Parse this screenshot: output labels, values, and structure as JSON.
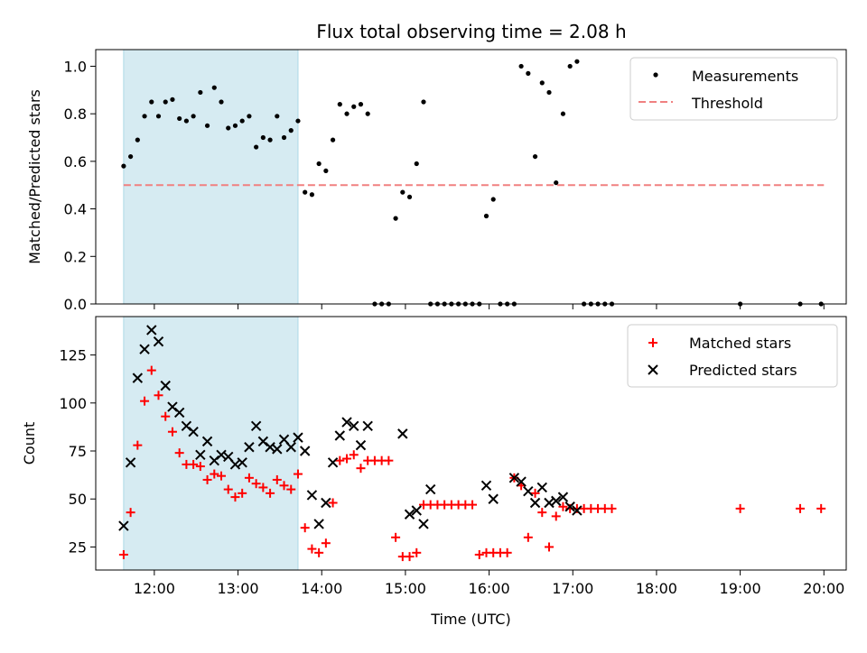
{
  "title": "Flux total observing time = 2.08 h",
  "chart_data": [
    {
      "type": "scatter",
      "ylabel": "Matched/Predicted stars",
      "xlim": [
        "11:18",
        "20:16"
      ],
      "ylim": [
        0,
        1.07
      ],
      "yticks": [
        0.0,
        0.2,
        0.4,
        0.6,
        0.8,
        1.0
      ],
      "ytick_labels": [
        "0.0",
        "0.2",
        "0.4",
        "0.6",
        "0.8",
        "1.0"
      ],
      "shaded_interval": [
        "11:38",
        "13:43"
      ],
      "shade_color": "#add8e6",
      "legend_position": "upper right",
      "legend": [
        "Measurements",
        "Threshold"
      ],
      "threshold": {
        "y": 0.5,
        "x": [
          "11:38",
          "20:00"
        ],
        "color": "#f08080",
        "style": "dashed"
      },
      "series": [
        {
          "name": "Measurements",
          "marker": "dot",
          "color": "#000000",
          "x": [
            "11:38",
            "11:43",
            "11:48",
            "11:53",
            "11:58",
            "12:03",
            "12:08",
            "12:13",
            "12:18",
            "12:23",
            "12:28",
            "12:33",
            "12:38",
            "12:43",
            "12:48",
            "12:53",
            "12:58",
            "13:03",
            "13:08",
            "13:13",
            "13:18",
            "13:23",
            "13:28",
            "13:33",
            "13:38",
            "13:43",
            "13:48",
            "13:53",
            "13:58",
            "14:03",
            "14:08",
            "14:13",
            "14:18",
            "14:23",
            "14:28",
            "14:33",
            "14:38",
            "14:43",
            "14:48",
            "14:53",
            "14:58",
            "15:03",
            "15:08",
            "15:13",
            "15:18",
            "15:23",
            "15:28",
            "15:33",
            "15:38",
            "15:43",
            "15:48",
            "15:53",
            "15:58",
            "16:03",
            "16:08",
            "16:13",
            "16:18",
            "16:23",
            "16:28",
            "16:33",
            "16:38",
            "16:43",
            "16:48",
            "16:53",
            "16:58",
            "17:03",
            "17:08",
            "17:13",
            "17:18",
            "17:23",
            "17:28",
            "19:00",
            "19:43",
            "19:58"
          ],
          "y": [
            0.58,
            0.62,
            0.69,
            0.79,
            0.85,
            0.79,
            0.85,
            0.86,
            0.78,
            0.77,
            0.79,
            0.89,
            0.75,
            0.91,
            0.85,
            0.74,
            0.75,
            0.77,
            0.79,
            0.66,
            0.7,
            0.69,
            0.79,
            0.7,
            0.73,
            0.77,
            0.47,
            0.46,
            0.59,
            0.56,
            0.69,
            0.84,
            0.8,
            0.83,
            0.84,
            0.8,
            0.0,
            0.0,
            0.0,
            0.36,
            0.47,
            0.45,
            0.59,
            0.85,
            0.0,
            0.0,
            0.0,
            0.0,
            0.0,
            0.0,
            0.0,
            0.0,
            0.37,
            0.44,
            0.0,
            0.0,
            0.0,
            1.0,
            0.97,
            0.62,
            0.93,
            0.89,
            0.51,
            0.8,
            1.0,
            1.02,
            0.0,
            0.0,
            0.0,
            0.0,
            0.0,
            0.0,
            0.0,
            0.0
          ]
        }
      ]
    },
    {
      "type": "scatter",
      "xlabel": "Time (UTC)",
      "ylabel": "Count",
      "xlim": [
        "11:18",
        "20:16"
      ],
      "ylim": [
        13,
        145
      ],
      "xticks": [
        "12:00",
        "13:00",
        "14:00",
        "15:00",
        "16:00",
        "17:00",
        "18:00",
        "19:00",
        "20:00"
      ],
      "yticks": [
        25,
        50,
        75,
        100,
        125
      ],
      "ytick_labels": [
        "25",
        "50",
        "75",
        "100",
        "125"
      ],
      "shaded_interval": [
        "11:38",
        "13:43"
      ],
      "shade_color": "#add8e6",
      "legend_position": "upper right",
      "legend": [
        "Matched stars",
        "Predicted stars"
      ],
      "series": [
        {
          "name": "Matched stars",
          "marker": "plus",
          "color": "#ff0000",
          "x": [
            "11:38",
            "11:43",
            "11:48",
            "11:53",
            "11:58",
            "12:03",
            "12:08",
            "12:13",
            "12:18",
            "12:23",
            "12:28",
            "12:33",
            "12:38",
            "12:43",
            "12:48",
            "12:53",
            "12:58",
            "13:03",
            "13:08",
            "13:13",
            "13:18",
            "13:23",
            "13:28",
            "13:33",
            "13:38",
            "13:43",
            "13:48",
            "13:53",
            "13:58",
            "14:03",
            "14:08",
            "14:13",
            "14:18",
            "14:23",
            "14:28",
            "14:33",
            "14:38",
            "14:43",
            "14:48",
            "14:53",
            "14:58",
            "15:03",
            "15:08",
            "15:13",
            "15:18",
            "15:23",
            "15:28",
            "15:33",
            "15:38",
            "15:43",
            "15:48",
            "15:53",
            "15:58",
            "16:03",
            "16:08",
            "16:13",
            "16:18",
            "16:23",
            "16:28",
            "16:33",
            "16:38",
            "16:43",
            "16:48",
            "16:53",
            "16:58",
            "17:03",
            "17:08",
            "17:13",
            "17:18",
            "17:23",
            "17:28",
            "19:00",
            "19:43",
            "19:58"
          ],
          "y": [
            21,
            43,
            78,
            101,
            117,
            104,
            93,
            85,
            74,
            68,
            68,
            67,
            60,
            63,
            62,
            55,
            51,
            53,
            61,
            58,
            56,
            53,
            60,
            57,
            55,
            63,
            35,
            24,
            22,
            27,
            48,
            70,
            71,
            73,
            66,
            70,
            70,
            70,
            70,
            30,
            20,
            20,
            22,
            47,
            47,
            47,
            47,
            47,
            47,
            47,
            47,
            21,
            22,
            22,
            22,
            22,
            61,
            57,
            30,
            53,
            43,
            25,
            41,
            46,
            45,
            45,
            45,
            45,
            45,
            45,
            45,
            45,
            45,
            45
          ]
        },
        {
          "name": "Predicted stars",
          "marker": "x",
          "color": "#000000",
          "x": [
            "11:38",
            "11:43",
            "11:48",
            "11:53",
            "11:58",
            "12:03",
            "12:08",
            "12:13",
            "12:18",
            "12:23",
            "12:28",
            "12:33",
            "12:38",
            "12:43",
            "12:48",
            "12:53",
            "12:58",
            "13:03",
            "13:08",
            "13:13",
            "13:18",
            "13:23",
            "13:28",
            "13:33",
            "13:38",
            "13:43",
            "13:48",
            "13:53",
            "13:58",
            "14:03",
            "14:08",
            "14:13",
            "14:18",
            "14:23",
            "14:28",
            "14:33",
            "14:58",
            "15:03",
            "15:08",
            "15:13",
            "15:18",
            "15:58",
            "16:03",
            "16:18",
            "16:23",
            "16:28",
            "16:33",
            "16:38",
            "16:43",
            "16:48",
            "16:53",
            "16:58",
            "17:03"
          ],
          "y": [
            36,
            69,
            113,
            128,
            138,
            132,
            109,
            98,
            95,
            88,
            85,
            73,
            80,
            70,
            73,
            72,
            68,
            69,
            77,
            88,
            80,
            77,
            76,
            81,
            77,
            82,
            75,
            52,
            37,
            48,
            69,
            83,
            90,
            88,
            78,
            88,
            84,
            42,
            44,
            37,
            55,
            57,
            50,
            61,
            59,
            54,
            48,
            56,
            48,
            49,
            51,
            46,
            44
          ]
        }
      ]
    }
  ]
}
